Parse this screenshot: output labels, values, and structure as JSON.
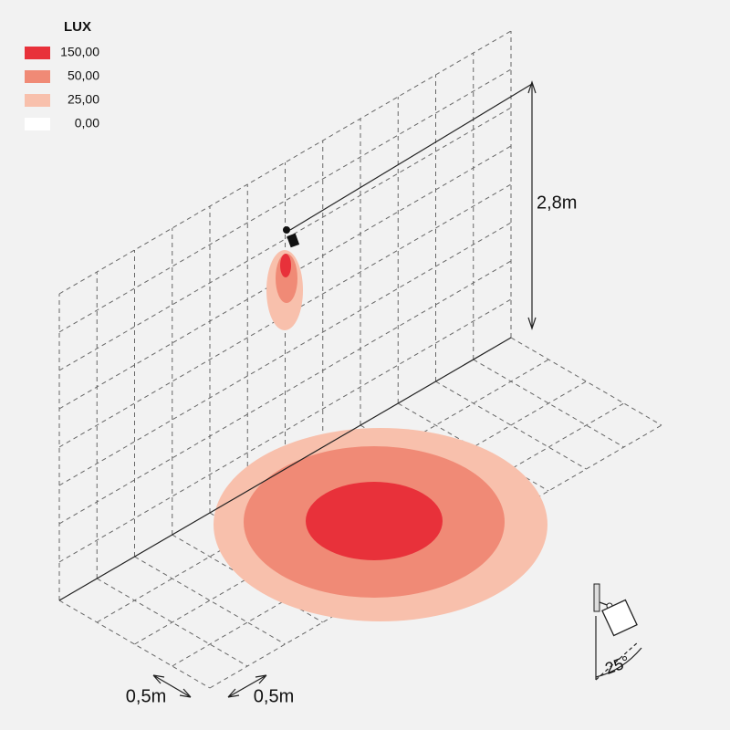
{
  "legend": {
    "title": "LUX",
    "items": [
      {
        "label": "150,00",
        "color": "#e8313a"
      },
      {
        "label": "50,00",
        "color": "#f08a76"
      },
      {
        "label": "25,00",
        "color": "#f8c0ac"
      },
      {
        "label": "0,00",
        "color": "#ffffff"
      }
    ]
  },
  "dimensions": {
    "mounting_height": "2,8m",
    "grid_step_x": "0,5m",
    "grid_step_y": "0,5m",
    "tilt_angle": "25°"
  }
}
